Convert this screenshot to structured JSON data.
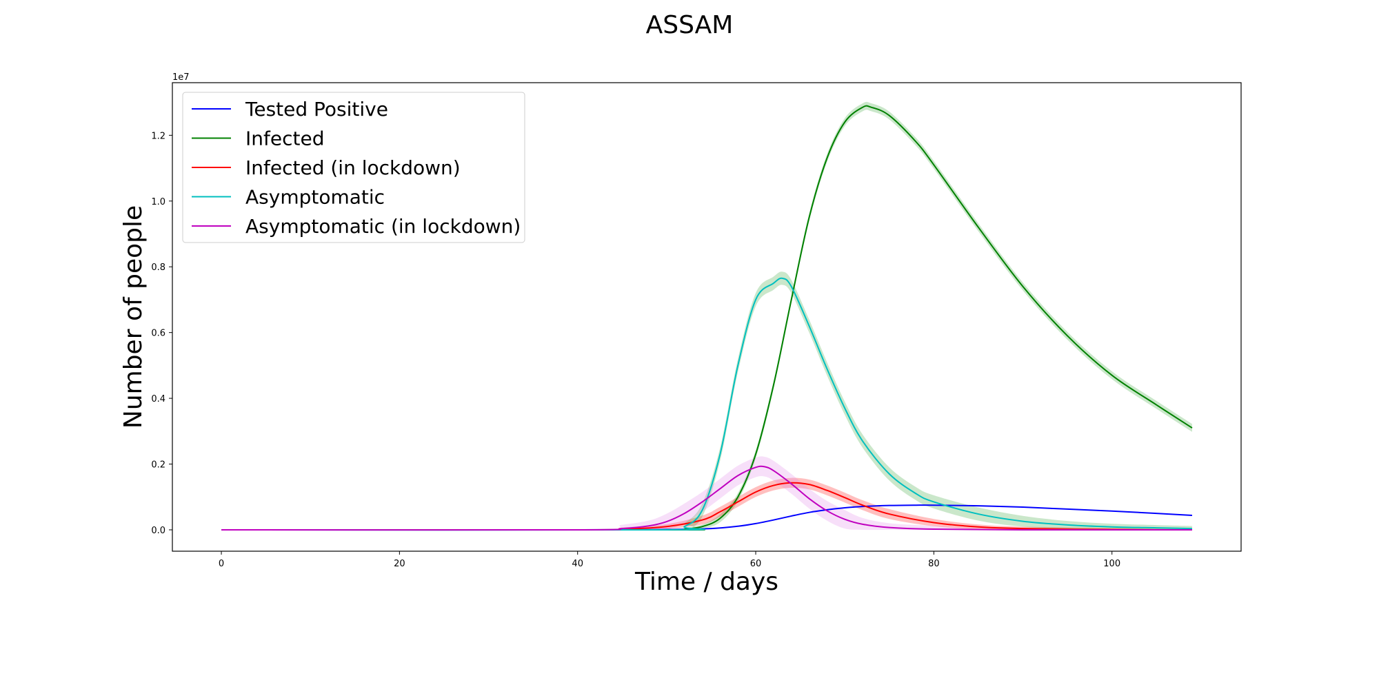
{
  "chart_data": {
    "type": "line",
    "title": "ASSAM",
    "xlabel": "Time / days",
    "ylabel": "Number of people",
    "y_offset_label": "1e7",
    "xlim": [
      -5.5,
      114.5
    ],
    "ylim": [
      -0.065,
      1.36
    ],
    "y_unit_multiplier": 10000000,
    "xticks": [
      0,
      20,
      40,
      60,
      80,
      100
    ],
    "xtick_labels": [
      "0",
      "20",
      "40",
      "60",
      "80",
      "100"
    ],
    "yticks": [
      0.0,
      0.2,
      0.4,
      0.6,
      0.8,
      1.0,
      1.2
    ],
    "ytick_labels": [
      "0.0",
      "0.2",
      "0.4",
      "0.6",
      "0.8",
      "1.0",
      "1.2"
    ],
    "grid": false,
    "legend_position": "top-left",
    "series": [
      {
        "name": "Tested Positive",
        "color": "#0000ff",
        "band_color": null,
        "points": [
          [
            0,
            0
          ],
          [
            40,
            0
          ],
          [
            50,
            0.001
          ],
          [
            55,
            0.004
          ],
          [
            58,
            0.011
          ],
          [
            60,
            0.019
          ],
          [
            62,
            0.03
          ],
          [
            64,
            0.042
          ],
          [
            66,
            0.053
          ],
          [
            68,
            0.061
          ],
          [
            70,
            0.067
          ],
          [
            72,
            0.071
          ],
          [
            75,
            0.074
          ],
          [
            78,
            0.075
          ],
          [
            80,
            0.075
          ],
          [
            85,
            0.073
          ],
          [
            90,
            0.069
          ],
          [
            95,
            0.063
          ],
          [
            100,
            0.057
          ],
          [
            105,
            0.05
          ],
          [
            109,
            0.044
          ]
        ]
      },
      {
        "name": "Infected",
        "color": "#008000",
        "band_color": "#2ca02c",
        "band_halfwidth": 0.012,
        "points": [
          [
            0,
            0
          ],
          [
            50,
            0
          ],
          [
            52,
            0.002
          ],
          [
            54,
            0.01
          ],
          [
            56,
            0.035
          ],
          [
            58,
            0.1
          ],
          [
            60,
            0.23
          ],
          [
            62,
            0.44
          ],
          [
            64,
            0.7
          ],
          [
            66,
            0.95
          ],
          [
            68,
            1.13
          ],
          [
            70,
            1.24
          ],
          [
            72,
            1.285
          ],
          [
            73,
            1.285
          ],
          [
            75,
            1.26
          ],
          [
            78,
            1.18
          ],
          [
            80,
            1.11
          ],
          [
            85,
            0.92
          ],
          [
            90,
            0.74
          ],
          [
            95,
            0.59
          ],
          [
            100,
            0.47
          ],
          [
            105,
            0.38
          ],
          [
            109,
            0.31
          ]
        ]
      },
      {
        "name": "Infected (in lockdown)",
        "color": "#ff0000",
        "band_color": "#ff0000",
        "band_halfwidth": 0.015,
        "points": [
          [
            0,
            0
          ],
          [
            40,
            0
          ],
          [
            45,
            0.002
          ],
          [
            50,
            0.01
          ],
          [
            54,
            0.03
          ],
          [
            56,
            0.055
          ],
          [
            58,
            0.085
          ],
          [
            60,
            0.115
          ],
          [
            62,
            0.135
          ],
          [
            64,
            0.143
          ],
          [
            66,
            0.138
          ],
          [
            68,
            0.12
          ],
          [
            70,
            0.098
          ],
          [
            72,
            0.075
          ],
          [
            75,
            0.048
          ],
          [
            80,
            0.022
          ],
          [
            85,
            0.009
          ],
          [
            90,
            0.004
          ],
          [
            100,
            0.001
          ],
          [
            109,
            0.0
          ]
        ]
      },
      {
        "name": "Asymptomatic",
        "color": "#00bfbf",
        "band_color": "#2ca02c",
        "band_halfwidth": 0.02,
        "points": [
          [
            0,
            0
          ],
          [
            50,
            0
          ],
          [
            52,
            0.01
          ],
          [
            54,
            0.06
          ],
          [
            56,
            0.23
          ],
          [
            58,
            0.5
          ],
          [
            60,
            0.7
          ],
          [
            62,
            0.75
          ],
          [
            63,
            0.765
          ],
          [
            64,
            0.74
          ],
          [
            66,
            0.62
          ],
          [
            68,
            0.49
          ],
          [
            70,
            0.37
          ],
          [
            72,
            0.27
          ],
          [
            75,
            0.17
          ],
          [
            78,
            0.11
          ],
          [
            80,
            0.085
          ],
          [
            85,
            0.048
          ],
          [
            90,
            0.026
          ],
          [
            95,
            0.015
          ],
          [
            100,
            0.009
          ],
          [
            105,
            0.006
          ],
          [
            109,
            0.004
          ]
        ]
      },
      {
        "name": "Asymptomatic (in lockdown)",
        "color": "#bf00bf",
        "band_color": "#e080e8",
        "band_halfwidth": 0.03,
        "points": [
          [
            0,
            0
          ],
          [
            40,
            0
          ],
          [
            45,
            0.004
          ],
          [
            48,
            0.012
          ],
          [
            50,
            0.025
          ],
          [
            52,
            0.05
          ],
          [
            54,
            0.085
          ],
          [
            56,
            0.125
          ],
          [
            58,
            0.165
          ],
          [
            60,
            0.19
          ],
          [
            61,
            0.192
          ],
          [
            62,
            0.18
          ],
          [
            64,
            0.14
          ],
          [
            66,
            0.095
          ],
          [
            68,
            0.058
          ],
          [
            70,
            0.032
          ],
          [
            72,
            0.017
          ],
          [
            75,
            0.007
          ],
          [
            80,
            0.002
          ],
          [
            90,
            0.0
          ],
          [
            109,
            0.0
          ]
        ]
      }
    ]
  }
}
